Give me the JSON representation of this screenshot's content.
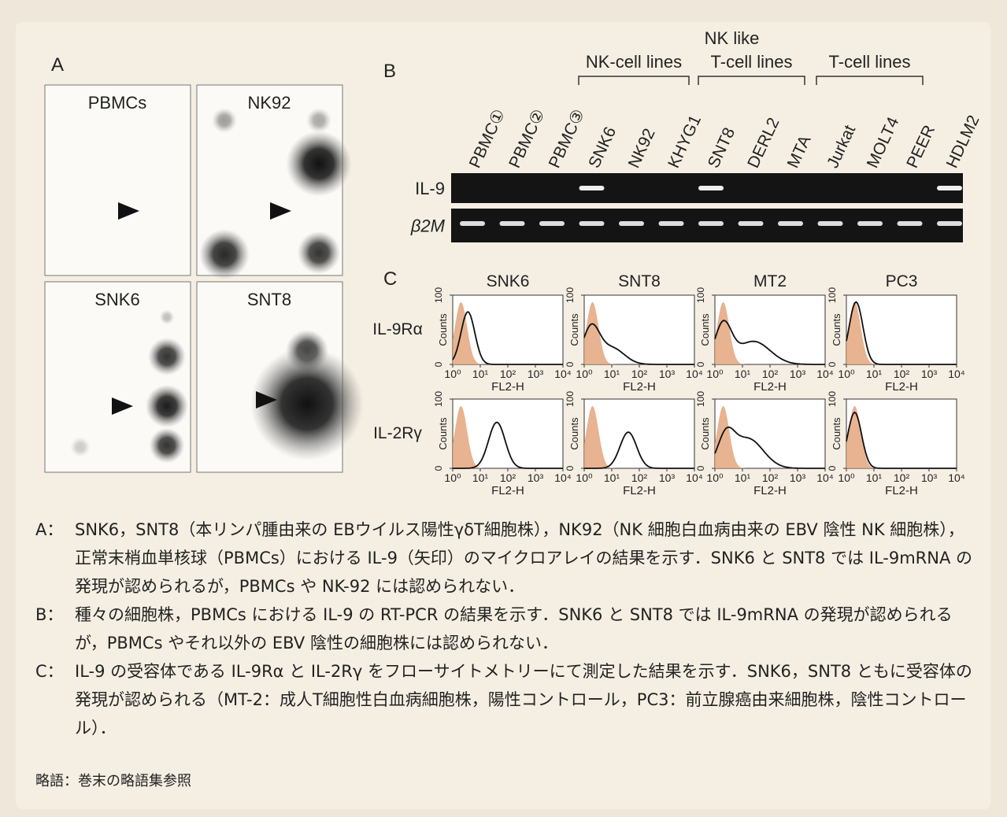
{
  "panel_a": {
    "label": "A",
    "blots": [
      {
        "title": "PBMCs"
      },
      {
        "title": "NK92"
      },
      {
        "title": "SNK6"
      },
      {
        "title": "SNT8"
      }
    ]
  },
  "panel_b": {
    "label": "B",
    "groups": [
      {
        "lines": [
          "NK-cell lines"
        ]
      },
      {
        "lines": [
          "NK like",
          "T-cell lines"
        ]
      },
      {
        "lines": [
          "T-cell lines"
        ]
      }
    ],
    "lanes": [
      "PBMC①",
      "PBMC②",
      "PBMC③",
      "SNK6",
      "NK92",
      "KHYG1",
      "SNT8",
      "DERL2",
      "MTA",
      "Jurkat",
      "MOLT4",
      "PEER",
      "HDLM2"
    ],
    "rows": [
      "IL-9",
      "β2M"
    ]
  },
  "panel_c": {
    "label": "C",
    "columns": [
      "SNK6",
      "SNT8",
      "MT2",
      "PC3"
    ],
    "rows": [
      "IL-9Rα",
      "IL-2Rγ"
    ],
    "xlabel": "FL2-H",
    "ylabel": "Counts",
    "xscale": "log",
    "xlim": [
      1,
      10000
    ],
    "xticks": [
      {
        "value": 1,
        "label": "10⁰"
      },
      {
        "value": 10,
        "label": "10¹"
      },
      {
        "value": 100,
        "label": "10²"
      },
      {
        "value": 1000,
        "label": "10³"
      },
      {
        "value": 10000,
        "label": "10⁴"
      }
    ],
    "ylim": [
      0,
      100
    ],
    "yticks": [
      0,
      100
    ]
  },
  "captions": [
    {
      "label": "A：",
      "text": "SNK6，SNT8（本リンパ腫由来の EBウイルス陽性γδT細胞株），NK92（NK 細胞白血病由来の EBV 陰性 NK 細胞株），正常末梢血単核球（PBMCs）における IL-9（矢印）のマイクロアレイの結果を示す．SNK6 と SNT8 では IL-9mRNA の発現が認められるが，PBMCs や NK-92 には認められない．"
    },
    {
      "label": "B：",
      "text": "種々の細胞株，PBMCs における IL-9 の RT-PCR の結果を示す．SNK6 と SNT8 では IL-9mRNA の発現が認められるが，PBMCs やそれ以外の EBV 陰性の細胞株には認められない．"
    },
    {
      "label": "C：",
      "text": "IL-9 の受容体である IL-9Rα と IL-2Rγ をフローサイトメトリーにて測定した結果を示す．SNK6，SNT8 ともに受容体の発現が認められる（MT-2：成人T細胞性白血病細胞株，陽性コントロール，PC3：前立腺癌由来細胞株，陰性コントロール）．"
    }
  ],
  "footnote": "略語：巻末の略語集参照"
}
